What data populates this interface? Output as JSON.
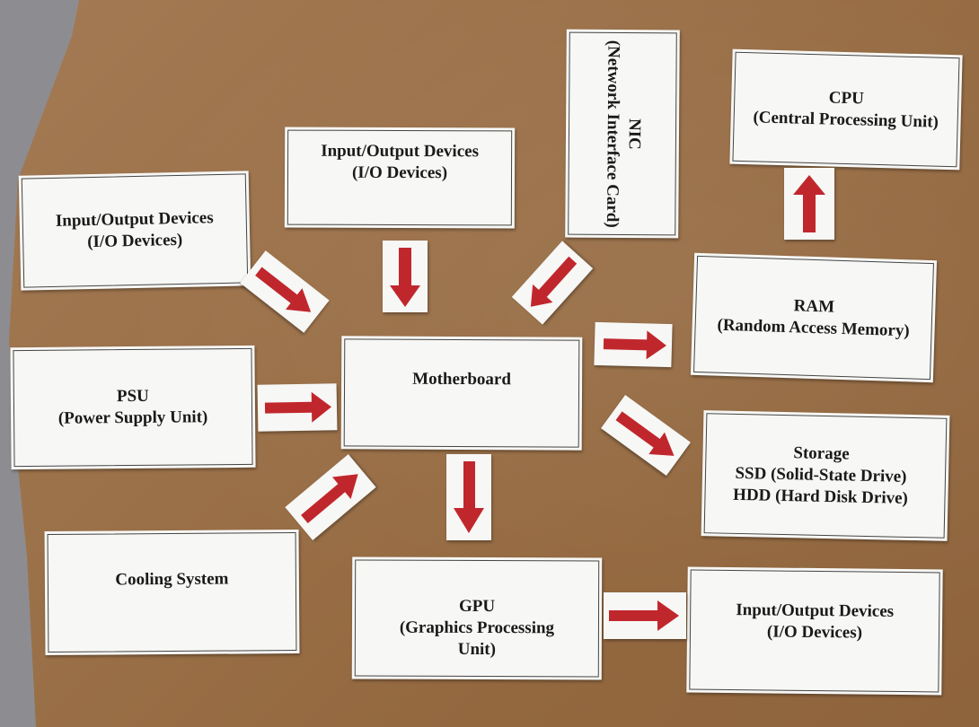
{
  "cards": {
    "cpu": {
      "line1": "CPU",
      "line2": "(Central Processing Unit)"
    },
    "nic": {
      "line1": "NIC",
      "line2": "(Network Interface Card)"
    },
    "io_top": {
      "line1": "Input/Output Devices",
      "line2": "(I/O Devices)"
    },
    "io_left": {
      "line1": "Input/Output Devices",
      "line2": "(I/O Devices)"
    },
    "ram": {
      "line1": "RAM",
      "line2": "(Random Access Memory)"
    },
    "psu": {
      "line1": "PSU",
      "line2": "(Power Supply Unit)"
    },
    "motherboard": {
      "line1": "Motherboard"
    },
    "storage": {
      "line1": "Storage",
      "line2": "SSD (Solid-State Drive)",
      "line3": "HDD (Hard Disk Drive)"
    },
    "cooling": {
      "line1": "Cooling System"
    },
    "gpu": {
      "line1": "GPU",
      "line2": "(Graphics Processing",
      "line3": "Unit)"
    },
    "io_bottom": {
      "line1": "Input/Output Devices",
      "line2": "(I/O Devices)"
    }
  },
  "colors": {
    "arrow": "#c0272d",
    "card": "#f7f7f5",
    "cardboard": "#9a7048",
    "wall": "#8d8d91"
  }
}
